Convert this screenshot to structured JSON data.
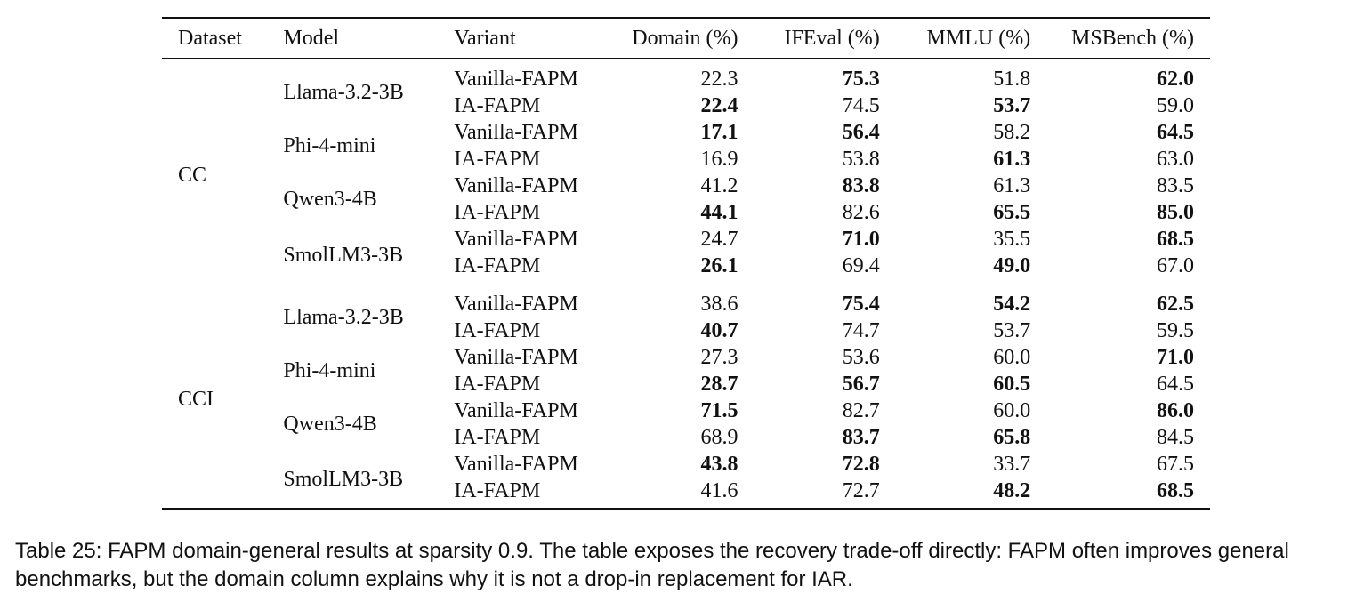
{
  "table": {
    "headers": [
      "Dataset",
      "Model",
      "Variant",
      "Domain (%)",
      "IFEval (%)",
      "MMLU (%)",
      "MSBench (%)"
    ],
    "groups": [
      {
        "dataset": "CC",
        "models": [
          {
            "name": "Llama-3.2-3B",
            "rows": [
              {
                "variant": "Vanilla-FAPM",
                "domain": "22.3",
                "ifeval": "75.3",
                "mmlu": "51.8",
                "msbench": "62.0"
              },
              {
                "variant": "IA-FAPM",
                "domain": "22.4",
                "ifeval": "74.5",
                "mmlu": "53.7",
                "msbench": "59.0"
              }
            ]
          },
          {
            "name": "Phi-4-mini",
            "rows": [
              {
                "variant": "Vanilla-FAPM",
                "domain": "17.1",
                "ifeval": "56.4",
                "mmlu": "58.2",
                "msbench": "64.5"
              },
              {
                "variant": "IA-FAPM",
                "domain": "16.9",
                "ifeval": "53.8",
                "mmlu": "61.3",
                "msbench": "63.0"
              }
            ]
          },
          {
            "name": "Qwen3-4B",
            "rows": [
              {
                "variant": "Vanilla-FAPM",
                "domain": "41.2",
                "ifeval": "83.8",
                "mmlu": "61.3",
                "msbench": "83.5"
              },
              {
                "variant": "IA-FAPM",
                "domain": "44.1",
                "ifeval": "82.6",
                "mmlu": "65.5",
                "msbench": "85.0"
              }
            ]
          },
          {
            "name": "SmolLM3-3B",
            "rows": [
              {
                "variant": "Vanilla-FAPM",
                "domain": "24.7",
                "ifeval": "71.0",
                "mmlu": "35.5",
                "msbench": "68.5"
              },
              {
                "variant": "IA-FAPM",
                "domain": "26.1",
                "ifeval": "69.4",
                "mmlu": "49.0",
                "msbench": "67.0"
              }
            ]
          }
        ]
      },
      {
        "dataset": "CCI",
        "models": [
          {
            "name": "Llama-3.2-3B",
            "rows": [
              {
                "variant": "Vanilla-FAPM",
                "domain": "38.6",
                "ifeval": "75.4",
                "mmlu": "54.2",
                "msbench": "62.5"
              },
              {
                "variant": "IA-FAPM",
                "domain": "40.7",
                "ifeval": "74.7",
                "mmlu": "53.7",
                "msbench": "59.5"
              }
            ]
          },
          {
            "name": "Phi-4-mini",
            "rows": [
              {
                "variant": "Vanilla-FAPM",
                "domain": "27.3",
                "ifeval": "53.6",
                "mmlu": "60.0",
                "msbench": "71.0"
              },
              {
                "variant": "IA-FAPM",
                "domain": "28.7",
                "ifeval": "56.7",
                "mmlu": "60.5",
                "msbench": "64.5"
              }
            ]
          },
          {
            "name": "Qwen3-4B",
            "rows": [
              {
                "variant": "Vanilla-FAPM",
                "domain": "71.5",
                "ifeval": "82.7",
                "mmlu": "60.0",
                "msbench": "86.0"
              },
              {
                "variant": "IA-FAPM",
                "domain": "68.9",
                "ifeval": "83.7",
                "mmlu": "65.8",
                "msbench": "84.5"
              }
            ]
          },
          {
            "name": "SmolLM3-3B",
            "rows": [
              {
                "variant": "Vanilla-FAPM",
                "domain": "43.8",
                "ifeval": "72.8",
                "mmlu": "33.7",
                "msbench": "67.5"
              },
              {
                "variant": "IA-FAPM",
                "domain": "41.6",
                "ifeval": "72.7",
                "mmlu": "48.2",
                "msbench": "68.5"
              }
            ]
          }
        ]
      }
    ]
  },
  "caption": {
    "label": "Table 25:",
    "text": "FAPM domain-general results at sparsity 0.9. The table exposes the recovery trade-off directly: FAPM often improves general benchmarks, but the domain column explains why it is not a drop-in replacement for IAR."
  }
}
